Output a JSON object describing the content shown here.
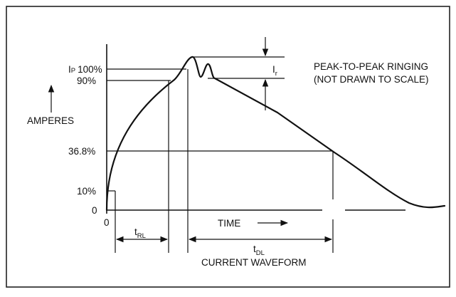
{
  "figure": {
    "y_axis_label": "AMPERES",
    "y_ticks": [
      "IP 100%",
      "90%",
      "36.8%",
      "10%",
      "0"
    ],
    "y_tick_ip_prefix": "I",
    "y_tick_ip_sub": "P",
    "y_tick_100": "100%",
    "x_origin": "0",
    "time_label": "TIME",
    "trl_label_main": "t",
    "trl_label_sub": "RL",
    "tdl_label_main": "t",
    "tdl_label_sub": "DL",
    "ir_label_main": "I",
    "ir_label_sub": "r",
    "ringing_line1": "PEAK-TO-PEAK RINGING",
    "ringing_line2": "(NOT DRAWN TO SCALE)",
    "caption": "CURRENT WAVEFORM"
  },
  "colors": {
    "ink": "#111111",
    "frame": "#222222",
    "background": "#ffffff"
  }
}
